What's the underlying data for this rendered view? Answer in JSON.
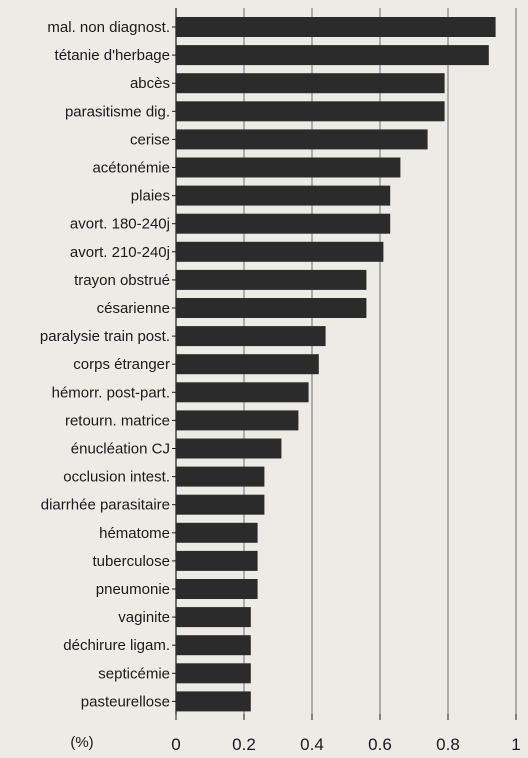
{
  "chart_data": {
    "type": "bar",
    "orientation": "horizontal",
    "categories": [
      "mal. non diagnost.",
      "tétanie d'herbage",
      "abcès",
      "parasitisme dig.",
      "cerise",
      "acétonémie",
      "plaies",
      "avort. 180-240j",
      "avort. 210-240j",
      "trayon obstrué",
      "césarienne",
      "paralysie train post.",
      "corps étranger",
      "hémorr. post-part.",
      "retourn. matrice",
      "énucléation CJ",
      "occlusion intest.",
      "diarrhée parasitaire",
      "hématome",
      "tuberculose",
      "pneumonie",
      "vaginite",
      "déchirure ligam.",
      "septicémie",
      "pasteurellose"
    ],
    "values": [
      0.94,
      0.92,
      0.79,
      0.79,
      0.74,
      0.66,
      0.63,
      0.63,
      0.61,
      0.56,
      0.56,
      0.44,
      0.42,
      0.39,
      0.36,
      0.31,
      0.26,
      0.26,
      0.24,
      0.24,
      0.24,
      0.22,
      0.22,
      0.22,
      0.22
    ],
    "xlim": [
      0,
      1
    ],
    "xticks": [
      "0",
      "0.2",
      "0.4",
      "0.6",
      "0.8",
      "1"
    ],
    "xtick_values": [
      0,
      0.2,
      0.4,
      0.6,
      0.8,
      1
    ],
    "unit_label": "(%)",
    "bar_color": "#2b2b2b",
    "grid": true,
    "grid_axis": "x",
    "background_color": "#ecebe6"
  }
}
